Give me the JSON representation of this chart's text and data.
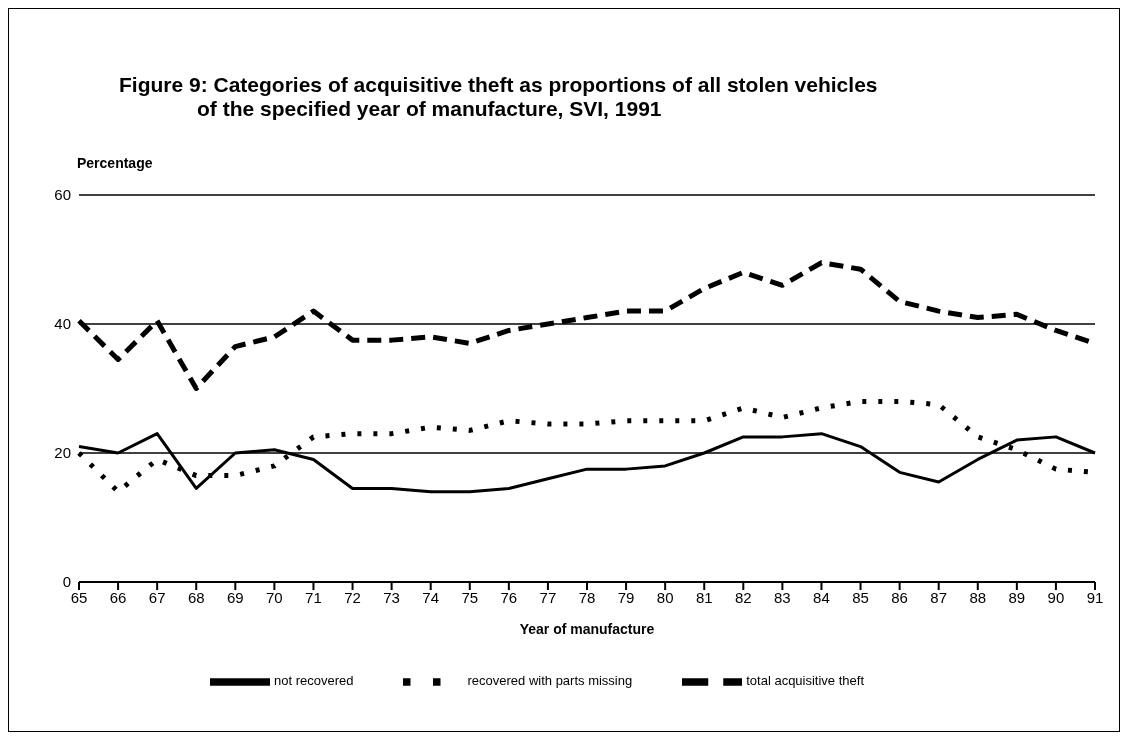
{
  "chart_data": {
    "type": "line",
    "title": "Figure 9:  Categories of acquisitive theft as proportions of all stolen vehicles\nof the specified year of manufacture, SVI, 1991",
    "xlabel": "Year of manufacture",
    "ylabel": "Percentage",
    "categories": [
      "65",
      "66",
      "67",
      "68",
      "69",
      "70",
      "71",
      "72",
      "73",
      "74",
      "75",
      "76",
      "77",
      "78",
      "79",
      "80",
      "81",
      "82",
      "83",
      "84",
      "85",
      "86",
      "87",
      "88",
      "89",
      "90",
      "91"
    ],
    "series": [
      {
        "name": "not recovered",
        "color": "#000000",
        "line_style": "solid",
        "values": [
          21,
          20,
          23,
          14.5,
          20,
          20.5,
          19,
          14.5,
          14.5,
          14,
          14,
          14.5,
          16,
          17.5,
          17.5,
          18,
          20,
          22.5,
          22.5,
          23,
          21,
          17,
          15.5,
          19,
          22,
          22.5,
          20
        ]
      },
      {
        "name": "recovered with parts missing",
        "color": "#000000",
        "line_style": "dotted",
        "values": [
          20,
          14,
          19,
          16.5,
          16.5,
          18,
          22.5,
          23,
          23,
          24,
          23.5,
          25,
          24.5,
          24.5,
          25,
          25,
          25,
          27,
          25.5,
          27,
          28,
          28,
          27.5,
          22.5,
          20.5,
          17.5,
          17
        ]
      },
      {
        "name": "total acquisitive theft",
        "color": "#000000",
        "line_style": "dashed",
        "values": [
          40.5,
          34.5,
          40.5,
          30,
          36.5,
          38,
          42,
          37.5,
          37.5,
          38,
          37,
          39,
          40,
          41,
          42,
          42,
          45.5,
          48,
          46,
          49.5,
          48.5,
          43.5,
          42,
          41,
          41.5,
          39,
          37
        ]
      }
    ],
    "ylim": [
      0,
      60
    ],
    "yticks": [
      0,
      20,
      40,
      60
    ],
    "grid": "y",
    "legend": "bottom",
    "marker": "none"
  }
}
